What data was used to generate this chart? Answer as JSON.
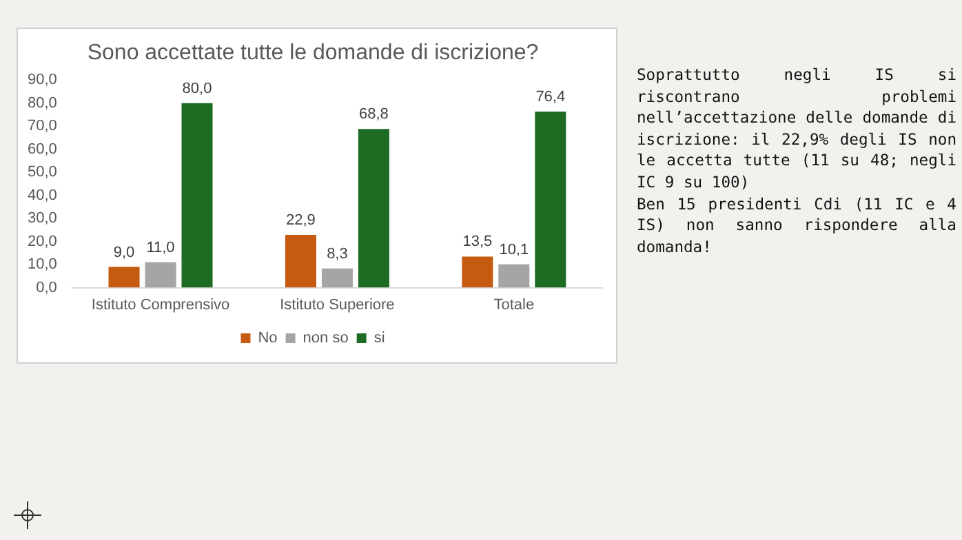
{
  "chart_data": {
    "type": "bar",
    "title": "Sono accettate tutte le domande di iscrizione?",
    "categories": [
      "Istituto Comprensivo",
      "Istituto Superiore",
      "Totale"
    ],
    "series": [
      {
        "name": "No",
        "color": "#c55a11",
        "values": [
          9.0,
          22.9,
          13.5
        ],
        "value_labels": [
          "9,0",
          "22,9",
          "13,5"
        ]
      },
      {
        "name": "non so",
        "color": "#a5a5a5",
        "values": [
          11.0,
          8.3,
          10.1
        ],
        "value_labels": [
          "11,0",
          "8,3",
          "10,1"
        ]
      },
      {
        "name": "si",
        "color": "#1e6b24",
        "values": [
          80.0,
          68.8,
          76.4
        ],
        "value_labels": [
          "80,0",
          "68,8",
          "76,4"
        ]
      }
    ],
    "ylim": [
      0,
      90
    ],
    "yticks": [
      {
        "value": 0,
        "label": "0,0"
      },
      {
        "value": 10,
        "label": "10,0"
      },
      {
        "value": 20,
        "label": "20,0"
      },
      {
        "value": 30,
        "label": "30,0"
      },
      {
        "value": 40,
        "label": "40,0"
      },
      {
        "value": 50,
        "label": "50,0"
      },
      {
        "value": 60,
        "label": "60,0"
      },
      {
        "value": 70,
        "label": "70,0"
      },
      {
        "value": 80,
        "label": "80,0"
      },
      {
        "value": 90,
        "label": "90,0"
      }
    ],
    "grid": false,
    "legend": "bottom",
    "annotations": [
      "Soprattutto negli IS si riscontrano problemi nell’accettazione delle domande di iscrizione: il 22,9% degli IS non le accetta tutte (11 su 48; negli IC 9 su 100)",
      "Ben 15 presidenti Cdi (11 IC e 4 IS) non sanno rispondere alla domanda!"
    ]
  }
}
